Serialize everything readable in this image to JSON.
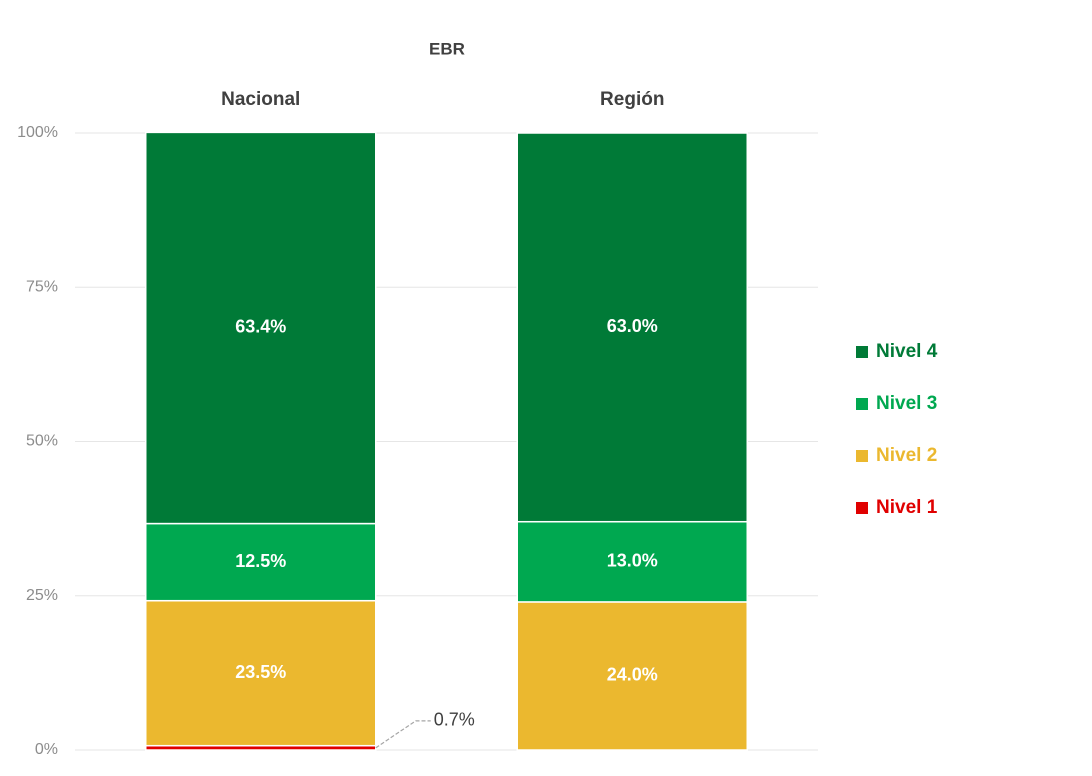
{
  "chart_data": {
    "type": "stacked_bar",
    "title": "EBR",
    "categories": [
      "Nacional",
      "Región"
    ],
    "series": [
      {
        "name": "Nivel 1",
        "color": "#e00000",
        "values": [
          0.7,
          0
        ],
        "value_labels": [
          "0.7%",
          null
        ]
      },
      {
        "name": "Nivel 2",
        "color": "#ebb82f",
        "values": [
          23.5,
          24.0
        ],
        "value_labels": [
          "23.5%",
          "24.0%"
        ]
      },
      {
        "name": "Nivel 3",
        "color": "#00a850",
        "values": [
          12.5,
          13.0
        ],
        "value_labels": [
          "12.5%",
          "13.0%"
        ]
      },
      {
        "name": "Nivel 4",
        "color": "#007a37",
        "values": [
          63.4,
          63.0
        ],
        "value_labels": [
          "63.4%",
          "63.0%"
        ]
      }
    ],
    "ylim": [
      0,
      100
    ],
    "yticks": [
      {
        "value": 0,
        "label": "0%"
      },
      {
        "value": 25,
        "label": "25%"
      },
      {
        "value": 50,
        "label": "50%"
      },
      {
        "value": 75,
        "label": "75%"
      },
      {
        "value": 100,
        "label": "100%"
      }
    ],
    "grid": true,
    "legend": "right"
  }
}
